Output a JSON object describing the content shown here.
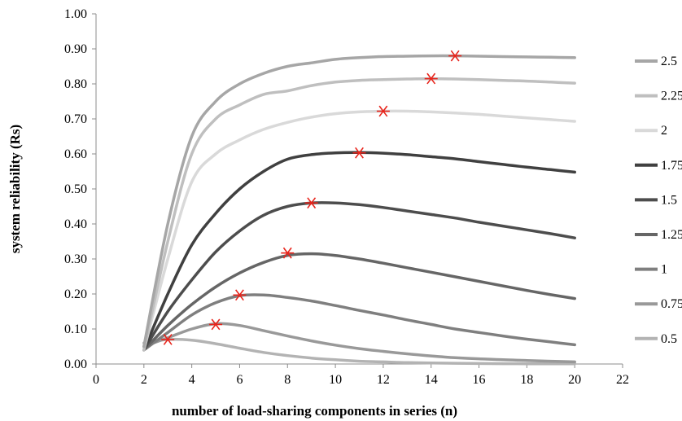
{
  "chart_data": {
    "type": "line",
    "xlabel": "number of load-sharing components in series (n)",
    "ylabel": "system reliability (Rs)",
    "xlim": [
      0,
      22
    ],
    "ylim": [
      0,
      1
    ],
    "x_ticks": [
      "0",
      "2",
      "4",
      "6",
      "8",
      "10",
      "12",
      "14",
      "16",
      "18",
      "20",
      "22"
    ],
    "y_ticks": [
      "0.00",
      "0.10",
      "0.20",
      "0.30",
      "0.40",
      "0.50",
      "0.60",
      "0.70",
      "0.80",
      "0.90",
      "1.00"
    ],
    "grid": false,
    "legend_position": "right",
    "x": [
      2,
      3,
      4,
      5,
      6,
      7,
      8,
      9,
      10,
      11,
      12,
      13,
      14,
      15,
      16,
      17,
      18,
      19,
      20
    ],
    "series": [
      {
        "name": "2.5",
        "color": "#a6a6a6",
        "values": [
          0.05,
          0.4,
          0.65,
          0.75,
          0.8,
          0.83,
          0.85,
          0.86,
          0.87,
          0.875,
          0.878,
          0.879,
          0.88,
          0.88,
          0.879,
          0.878,
          0.877,
          0.876,
          0.875
        ],
        "optimum": [
          15,
          0.88
        ]
      },
      {
        "name": "2.25",
        "color": "#bfbfbf",
        "values": [
          0.04,
          0.35,
          0.6,
          0.7,
          0.74,
          0.77,
          0.78,
          0.795,
          0.805,
          0.81,
          0.812,
          0.814,
          0.815,
          0.814,
          0.812,
          0.81,
          0.808,
          0.805,
          0.802
        ],
        "optimum": [
          14,
          0.815
        ]
      },
      {
        "name": "2",
        "color": "#d9d9d9",
        "values": [
          0.04,
          0.3,
          0.52,
          0.6,
          0.64,
          0.67,
          0.69,
          0.705,
          0.715,
          0.72,
          0.722,
          0.722,
          0.72,
          0.717,
          0.713,
          0.708,
          0.703,
          0.698,
          0.693
        ],
        "optimum": [
          12,
          0.722
        ]
      },
      {
        "name": "1.75",
        "color": "#404040",
        "values": [
          0.04,
          0.2,
          0.34,
          0.43,
          0.5,
          0.55,
          0.585,
          0.598,
          0.603,
          0.604,
          0.602,
          0.598,
          0.592,
          0.586,
          0.578,
          0.57,
          0.562,
          0.555,
          0.548
        ],
        "optimum": [
          11,
          0.603
        ]
      },
      {
        "name": "1.5",
        "color": "#4d4d4d",
        "values": [
          0.04,
          0.15,
          0.24,
          0.32,
          0.38,
          0.425,
          0.45,
          0.46,
          0.46,
          0.455,
          0.447,
          0.437,
          0.427,
          0.417,
          0.405,
          0.394,
          0.383,
          0.372,
          0.36
        ],
        "optimum": [
          9,
          0.46
        ]
      },
      {
        "name": "1.25",
        "color": "#666666",
        "values": [
          0.04,
          0.11,
          0.17,
          0.22,
          0.26,
          0.29,
          0.31,
          0.315,
          0.31,
          0.3,
          0.288,
          0.275,
          0.262,
          0.249,
          0.236,
          0.223,
          0.21,
          0.198,
          0.187
        ],
        "optimum": [
          8,
          0.317
        ]
      },
      {
        "name": "1",
        "color": "#7f7f7f",
        "values": [
          0.04,
          0.09,
          0.14,
          0.175,
          0.195,
          0.197,
          0.19,
          0.18,
          0.167,
          0.153,
          0.14,
          0.126,
          0.113,
          0.1,
          0.09,
          0.08,
          0.071,
          0.063,
          0.055
        ],
        "optimum": [
          6,
          0.197
        ]
      },
      {
        "name": "0.75",
        "color": "#999999",
        "values": [
          0.05,
          0.075,
          0.1,
          0.115,
          0.11,
          0.095,
          0.08,
          0.066,
          0.054,
          0.044,
          0.036,
          0.029,
          0.023,
          0.018,
          0.015,
          0.012,
          0.01,
          0.008,
          0.006
        ],
        "optimum": [
          5,
          0.113
        ]
      },
      {
        "name": "0.5",
        "color": "#b3b3b3",
        "values": [
          0.06,
          0.07,
          0.068,
          0.058,
          0.045,
          0.033,
          0.024,
          0.017,
          0.012,
          0.008,
          0.006,
          0.004,
          0.003,
          0.002,
          0.0015,
          0.001,
          0.0008,
          0.0006,
          0.0005
        ],
        "optimum": [
          3,
          0.07
        ]
      }
    ],
    "marker": {
      "symbol": "asterisk",
      "color": "#e8251c"
    }
  }
}
